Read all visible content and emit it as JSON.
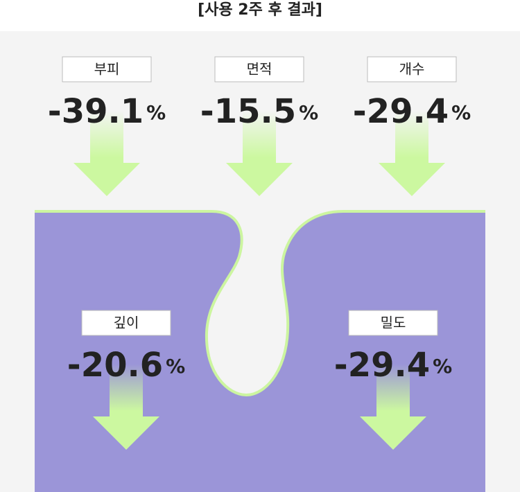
{
  "title": "[사용 2주 후 결과]",
  "results": [
    {
      "label": "부피",
      "value": "-39.1",
      "unit": "%"
    },
    {
      "label": "면적",
      "value": "-15.5",
      "unit": "%"
    },
    {
      "label": "개수",
      "value": "-29.4",
      "unit": "%"
    },
    {
      "label": "깊이",
      "value": "-20.6",
      "unit": "%"
    },
    {
      "label": "밀도",
      "value": "-29.4",
      "unit": "%"
    }
  ]
}
